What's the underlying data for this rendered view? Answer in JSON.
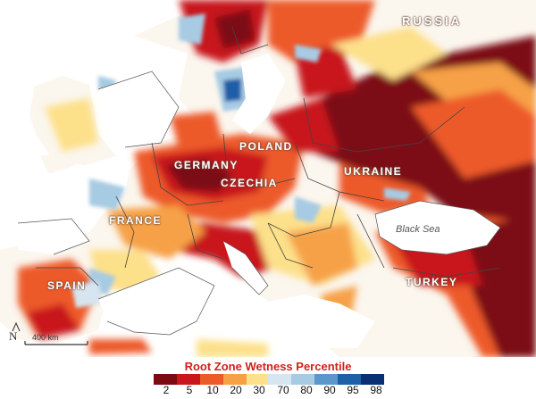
{
  "map": {
    "country_labels": [
      {
        "id": "russia",
        "text": "RUSSIA"
      },
      {
        "id": "poland",
        "text": "POLAND"
      },
      {
        "id": "germany",
        "text": "GERMANY"
      },
      {
        "id": "ukraine",
        "text": "UKRAINE"
      },
      {
        "id": "czechia",
        "text": "CZECHIA"
      },
      {
        "id": "france",
        "text": "FRANCE"
      },
      {
        "id": "spain",
        "text": "SPAIN"
      },
      {
        "id": "turkey",
        "text": "TURKEY"
      }
    ],
    "sea_label": "Black Sea",
    "north_arrow": "N",
    "scale_bar_label": "400 km"
  },
  "legend": {
    "title": "Root Zone Wetness Percentile",
    "dry_ticks": [
      "2",
      "5",
      "10",
      "20",
      "30"
    ],
    "wet_ticks": [
      "70",
      "80",
      "90",
      "95",
      "98"
    ],
    "dry_colors": [
      "#7b0a13",
      "#c8161c",
      "#ed5a2a",
      "#f6a146",
      "#fde08a"
    ],
    "wet_colors": [
      "#d6e5f0",
      "#a7cbe3",
      "#5b97cb",
      "#1f5fa8",
      "#0a2f72"
    ]
  },
  "colors": {
    "extreme_dry": "#7b0a13",
    "very_dry": "#c8161c",
    "dry": "#ed5a2a",
    "moderate_dry": "#f6a146",
    "slight_dry": "#fde08a",
    "wet": "#a7cbe3",
    "very_wet": "#1f5fa8",
    "sea": "#ffffff",
    "border": "#444444"
  }
}
